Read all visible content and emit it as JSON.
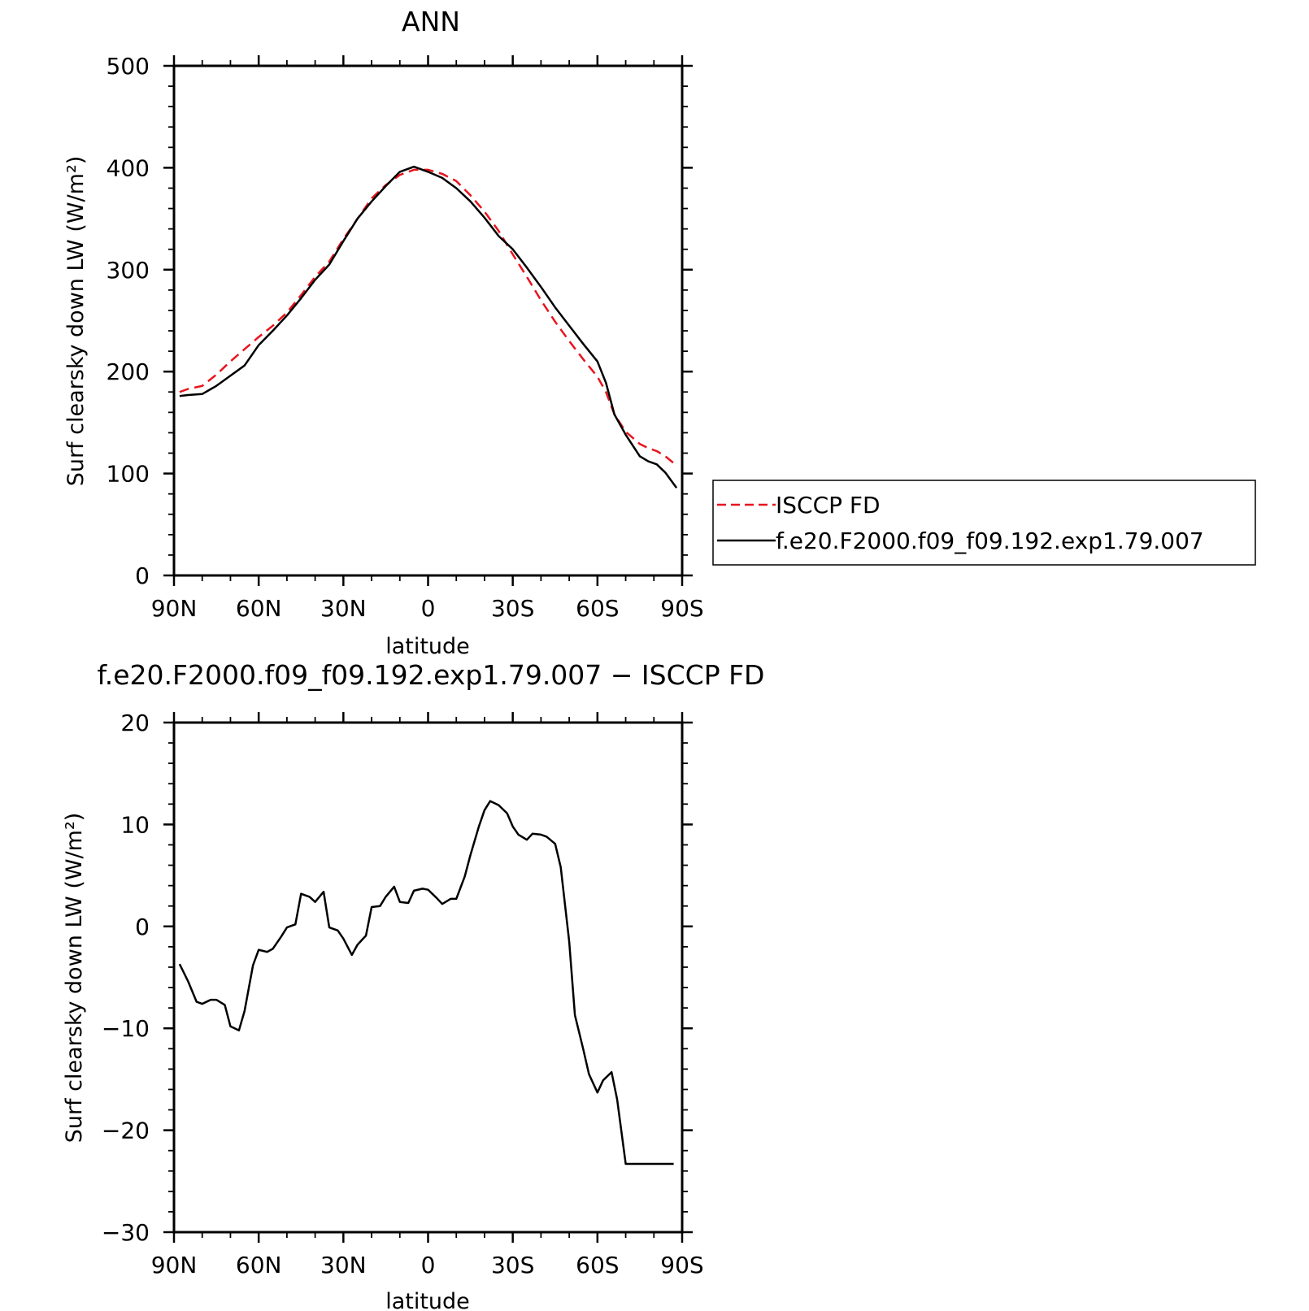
{
  "chart_data": [
    {
      "type": "line",
      "title": "ANN",
      "xlabel": "latitude",
      "ylabel": "Surf clearsky down LW (W/m²)",
      "xlim": [
        90,
        -90
      ],
      "ylim": [
        0,
        500
      ],
      "x_tick_values": [
        90,
        60,
        30,
        0,
        -30,
        -60,
        -90
      ],
      "x_tick_labels": [
        "90N",
        "60N",
        "30N",
        "0",
        "30S",
        "60S",
        "90S"
      ],
      "y_tick_values": [
        0,
        100,
        200,
        300,
        400,
        500
      ],
      "y_tick_labels": [
        "0",
        "100",
        "200",
        "300",
        "400",
        "500"
      ],
      "grid": false,
      "legend_position": "right",
      "series": [
        {
          "name": "ISCCP FD",
          "color": "#e8141e",
          "dash": "dashed",
          "x": [
            88,
            85,
            80,
            75,
            70,
            65,
            60,
            55,
            50,
            45,
            40,
            35,
            30,
            25,
            20,
            15,
            10,
            5,
            0,
            -5,
            -10,
            -15,
            -20,
            -25,
            -30,
            -35,
            -40,
            -45,
            -50,
            -55,
            -60,
            -63,
            -66,
            -70,
            -75,
            -78,
            -81,
            -84,
            -88
          ],
          "y": [
            180,
            183,
            186,
            197,
            210,
            222,
            234,
            245,
            258,
            275,
            293,
            308,
            330,
            350,
            370,
            383,
            393,
            398,
            398,
            394,
            387,
            373,
            357,
            338,
            315,
            293,
            270,
            249,
            230,
            212,
            195,
            180,
            158,
            141,
            129,
            125,
            122,
            117,
            108
          ]
        },
        {
          "name": "f.e20.F2000.f09_f09.192.exp1.79.007",
          "color": "#000000",
          "dash": "solid",
          "x": [
            88,
            85,
            80,
            75,
            70,
            65,
            60,
            55,
            50,
            45,
            40,
            35,
            30,
            25,
            20,
            15,
            10,
            5,
            0,
            -5,
            -10,
            -15,
            -20,
            -25,
            -30,
            -35,
            -40,
            -45,
            -50,
            -55,
            -60,
            -63,
            -66,
            -70,
            -75,
            -78,
            -81,
            -84,
            -88
          ],
          "y": [
            176,
            177,
            178,
            186,
            196,
            206,
            226,
            240,
            255,
            272,
            290,
            305,
            328,
            350,
            367,
            382,
            396,
            401,
            396,
            390,
            380,
            367,
            351,
            333,
            320,
            302,
            283,
            263,
            245,
            227,
            210,
            189,
            158,
            138,
            117,
            112,
            109,
            101,
            86
          ]
        }
      ]
    },
    {
      "type": "line",
      "title": "f.e20.F2000.f09_f09.192.exp1.79.007 − ISCCP FD",
      "xlabel": "latitude",
      "ylabel": "Surf clearsky down LW (W/m²)",
      "xlim": [
        90,
        -90
      ],
      "ylim": [
        -30,
        20
      ],
      "x_tick_values": [
        90,
        60,
        30,
        0,
        -30,
        -60,
        -90
      ],
      "x_tick_labels": [
        "90N",
        "60N",
        "30N",
        "0",
        "30S",
        "60S",
        "90S"
      ],
      "y_tick_values": [
        -30,
        -20,
        -10,
        0,
        10,
        20
      ],
      "y_tick_labels": [
        "−30",
        "−20",
        "−10",
        "0",
        "10",
        "20"
      ],
      "grid": false,
      "series": [
        {
          "color": "#000000",
          "dash": "solid",
          "x": [
            88,
            85,
            82,
            80,
            77,
            75,
            72,
            70,
            67,
            65,
            62,
            60,
            57,
            55,
            52,
            50,
            47,
            45,
            42,
            40,
            37,
            35,
            32,
            30,
            27,
            25,
            22,
            20,
            17,
            15,
            12,
            10,
            7,
            5,
            2,
            0,
            -3,
            -5,
            -8,
            -10,
            -13,
            -15,
            -18,
            -20,
            -22,
            -25,
            -28,
            -30,
            -32,
            -35,
            -37,
            -40,
            -42,
            -45,
            -47,
            -50,
            -52,
            -55,
            -57,
            -60,
            -62,
            -65,
            -67,
            -70,
            -72,
            -75,
            -77,
            -80,
            -82,
            -85,
            -87
          ],
          "y": [
            -3.7,
            -5.4,
            -7.4,
            -7.6,
            -7.2,
            -7.2,
            -7.7,
            -9.8,
            -10.2,
            -8.3,
            -3.8,
            -2.3,
            -2.5,
            -2.2,
            -1.0,
            -0.1,
            0.2,
            3.2,
            2.9,
            2.4,
            3.4,
            -0.1,
            -0.4,
            -1.2,
            -2.8,
            -1.8,
            -0.9,
            1.9,
            2.0,
            2.9,
            3.9,
            2.4,
            2.3,
            3.5,
            3.7,
            3.6,
            2.8,
            2.2,
            2.7,
            2.7,
            4.9,
            7.0,
            9.8,
            11.4,
            12.3,
            11.9,
            11.1,
            9.8,
            9.0,
            8.5,
            9.1,
            9.0,
            8.8,
            8.1,
            5.8,
            -1.5,
            -8.7,
            -12.1,
            -14.5,
            -16.3,
            -15.1,
            -14.3,
            -17.0,
            -23.3,
            -23.3,
            -23.3,
            -23.3,
            -23.3,
            -23.3,
            -23.3,
            -23.3
          ]
        }
      ]
    }
  ],
  "legend": {
    "items": [
      {
        "label": "ISCCP FD",
        "color": "#e8141e",
        "dash": "dashed"
      },
      {
        "label": "f.e20.F2000.f09_f09.192.exp1.79.007",
        "color": "#000000",
        "dash": "solid"
      }
    ]
  }
}
